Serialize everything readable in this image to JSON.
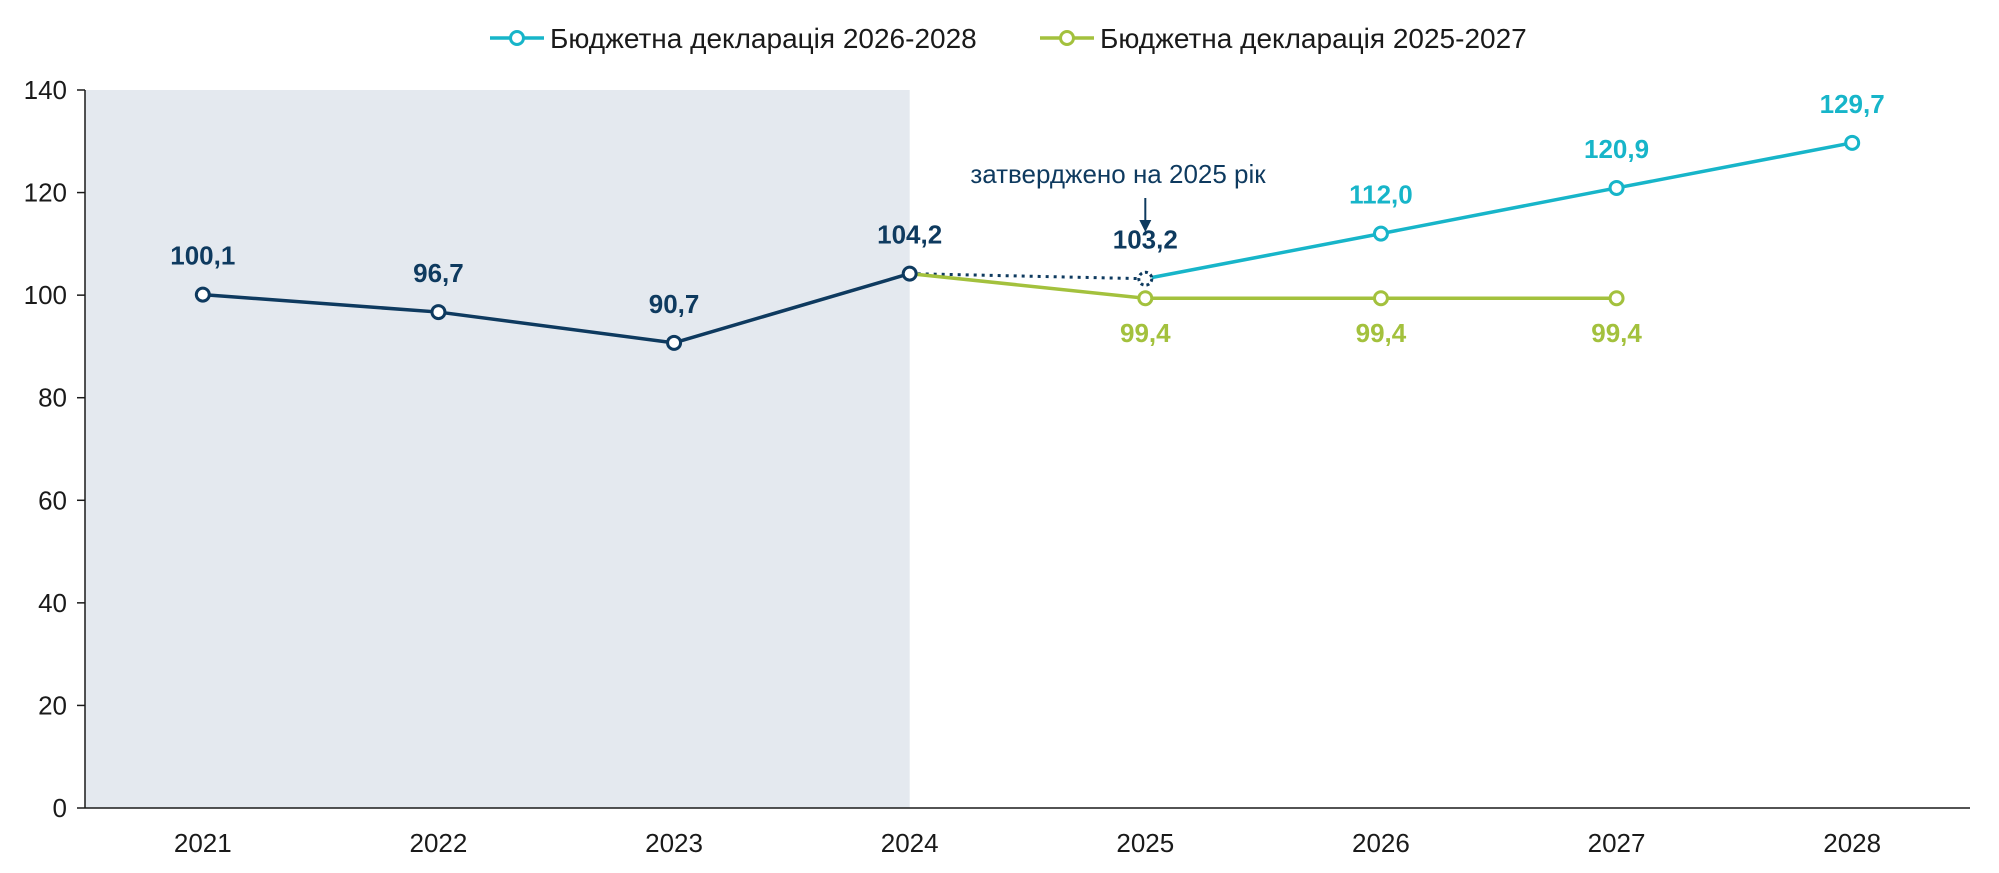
{
  "chart_data": {
    "type": "line",
    "categories": [
      "2021",
      "2022",
      "2023",
      "2024",
      "2025",
      "2026",
      "2027",
      "2028"
    ],
    "ylim": [
      0,
      140
    ],
    "yticks": [
      "0",
      "20",
      "40",
      "60",
      "80",
      "100",
      "120",
      "140"
    ],
    "grid": false,
    "legend_position": "top-center",
    "shaded_region": {
      "from": "2021",
      "to": "2024",
      "color": "#e4e9ef"
    },
    "series": [
      {
        "key": "actual",
        "color": "#0e3a5f",
        "values": [
          100.1,
          96.7,
          90.7,
          104.2,
          null,
          null,
          null,
          null
        ],
        "labels": [
          "100,1",
          "96,7",
          "90,7",
          "104,2",
          "",
          "",
          "",
          ""
        ]
      },
      {
        "key": "approved_2025",
        "color": "#0e3a5f",
        "style": "dotted",
        "values": [
          null,
          null,
          null,
          104.2,
          103.2,
          null,
          null,
          null
        ],
        "labels": [
          "",
          "",
          "",
          "",
          "103,2",
          "",
          "",
          ""
        ]
      },
      {
        "key": "bd_2026_2028",
        "name": "Бюджетна декларація 2026-2028",
        "color": "#17b5c9",
        "values": [
          null,
          null,
          null,
          null,
          103.2,
          112.0,
          120.9,
          129.7
        ],
        "labels": [
          "",
          "",
          "",
          "",
          "",
          "112,0",
          "120,9",
          "129,7"
        ]
      },
      {
        "key": "bd_2025_2027",
        "name": "Бюджетна декларація 2025-2027",
        "color": "#a3c13d",
        "values": [
          null,
          null,
          null,
          104.2,
          99.4,
          99.4,
          99.4,
          null
        ],
        "labels": [
          "",
          "",
          "",
          "",
          "99,4",
          "99,4",
          "99,4",
          ""
        ]
      }
    ],
    "annotations": [
      {
        "text": "затверджено на 2025 рік",
        "category": "2025",
        "color": "#0e3a5f",
        "arrow": true
      }
    ]
  }
}
